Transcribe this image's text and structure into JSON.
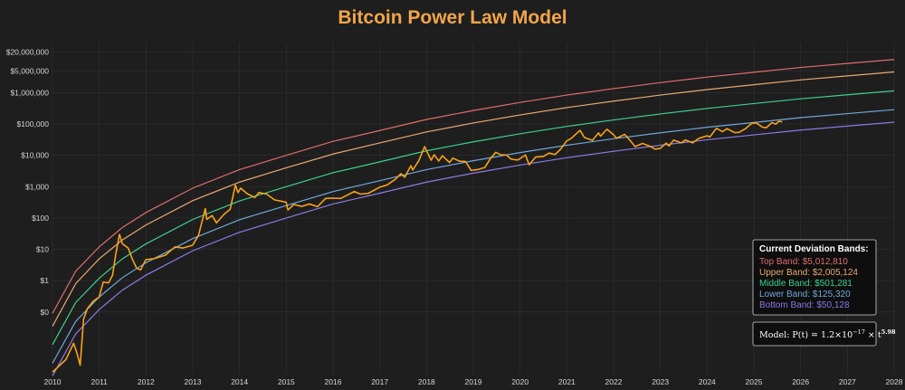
{
  "chart_data": {
    "type": "line",
    "title": "Bitcoin Power Law Model",
    "title_color": "#f2a54a",
    "xlabel": "",
    "ylabel": "",
    "y_scale": "log",
    "x_range": [
      "2010-01-01",
      "2028-01-01"
    ],
    "y_range": [
      0.001,
      40000000
    ],
    "grid": true,
    "x_ticks": [
      "2010",
      "2011",
      "2012",
      "2013",
      "2014",
      "2015",
      "2016",
      "2017",
      "2018",
      "2019",
      "2020",
      "2021",
      "2022",
      "2023",
      "2024",
      "2025",
      "2026",
      "2027",
      "2028"
    ],
    "y_ticks": [
      {
        "value": 20000000,
        "label": "$20,000,000"
      },
      {
        "value": 5000000,
        "label": "$5,000,000"
      },
      {
        "value": 1000000,
        "label": "$1,000,000"
      },
      {
        "value": 100000,
        "label": "$100,000"
      },
      {
        "value": 10000,
        "label": "$10,000"
      },
      {
        "value": 1000,
        "label": "$1,000"
      },
      {
        "value": 100,
        "label": "$100"
      },
      {
        "value": 10,
        "label": "$10"
      },
      {
        "value": 1,
        "label": "$1"
      },
      {
        "value": 0.1,
        "label": "$0"
      }
    ],
    "bands": [
      {
        "name": "Top Band",
        "color": "#e06c6c",
        "points": [
          [
            "2010-01-01",
            0.09
          ],
          [
            "2010-07-01",
            2
          ],
          [
            "2011-01-01",
            12
          ],
          [
            "2011-07-01",
            50
          ],
          [
            "2012-01-01",
            150
          ],
          [
            "2013-01-01",
            900
          ],
          [
            "2014-01-01",
            3500
          ],
          [
            "2015-01-01",
            10000
          ],
          [
            "2016-01-01",
            28000
          ],
          [
            "2017-01-01",
            62000
          ],
          [
            "2018-01-01",
            140000
          ],
          [
            "2019-01-01",
            270000
          ],
          [
            "2020-01-01",
            490000
          ],
          [
            "2021-01-01",
            840000
          ],
          [
            "2022-01-01",
            1350000
          ],
          [
            "2023-01-01",
            2100000
          ],
          [
            "2024-01-01",
            3150000
          ],
          [
            "2025-01-01",
            4500000
          ],
          [
            "2026-01-01",
            6400000
          ],
          [
            "2027-01-01",
            8600000
          ],
          [
            "2028-01-01",
            11500000
          ]
        ]
      },
      {
        "name": "Upper Band",
        "color": "#e8a870",
        "points": [
          [
            "2010-01-01",
            0.035
          ],
          [
            "2010-07-01",
            0.8
          ],
          [
            "2011-01-01",
            5
          ],
          [
            "2011-07-01",
            20
          ],
          [
            "2012-01-01",
            60
          ],
          [
            "2013-01-01",
            360
          ],
          [
            "2014-01-01",
            1400
          ],
          [
            "2015-01-01",
            4000
          ],
          [
            "2016-01-01",
            11000
          ],
          [
            "2017-01-01",
            25000
          ],
          [
            "2018-01-01",
            56000
          ],
          [
            "2019-01-01",
            108000
          ],
          [
            "2020-01-01",
            195000
          ],
          [
            "2021-01-01",
            335000
          ],
          [
            "2022-01-01",
            540000
          ],
          [
            "2023-01-01",
            840000
          ],
          [
            "2024-01-01",
            1260000
          ],
          [
            "2025-01-01",
            1800000
          ],
          [
            "2026-01-01",
            2560000
          ],
          [
            "2027-01-01",
            3450000
          ],
          [
            "2028-01-01",
            4600000
          ]
        ]
      },
      {
        "name": "Middle Band",
        "color": "#3fcf8e",
        "points": [
          [
            "2010-01-01",
            0.009
          ],
          [
            "2010-07-01",
            0.2
          ],
          [
            "2011-01-01",
            1.2
          ],
          [
            "2011-07-01",
            5
          ],
          [
            "2012-01-01",
            15
          ],
          [
            "2013-01-01",
            90
          ],
          [
            "2014-01-01",
            350
          ],
          [
            "2015-01-01",
            1000
          ],
          [
            "2016-01-01",
            2800
          ],
          [
            "2017-01-01",
            6200
          ],
          [
            "2018-01-01",
            14000
          ],
          [
            "2019-01-01",
            27000
          ],
          [
            "2020-01-01",
            49000
          ],
          [
            "2021-01-01",
            84000
          ],
          [
            "2022-01-01",
            135000
          ],
          [
            "2023-01-01",
            210000
          ],
          [
            "2024-01-01",
            315000
          ],
          [
            "2025-01-01",
            450000
          ],
          [
            "2026-01-01",
            640000
          ],
          [
            "2027-01-01",
            860000
          ],
          [
            "2028-01-01",
            1150000
          ]
        ]
      },
      {
        "name": "Lower Band",
        "color": "#6fa8dc",
        "points": [
          [
            "2010-01-01",
            0.0023
          ],
          [
            "2010-07-01",
            0.05
          ],
          [
            "2011-01-01",
            0.3
          ],
          [
            "2011-07-01",
            1.25
          ],
          [
            "2012-01-01",
            3.75
          ],
          [
            "2013-01-01",
            22
          ],
          [
            "2014-01-01",
            88
          ],
          [
            "2015-01-01",
            250
          ],
          [
            "2016-01-01",
            700
          ],
          [
            "2017-01-01",
            1550
          ],
          [
            "2018-01-01",
            3500
          ],
          [
            "2019-01-01",
            6750
          ],
          [
            "2020-01-01",
            12250
          ],
          [
            "2021-01-01",
            21000
          ],
          [
            "2022-01-01",
            34000
          ],
          [
            "2023-01-01",
            52500
          ],
          [
            "2024-01-01",
            79000
          ],
          [
            "2025-01-01",
            112000
          ],
          [
            "2026-01-01",
            160000
          ],
          [
            "2027-01-01",
            215000
          ],
          [
            "2028-01-01",
            288000
          ]
        ]
      },
      {
        "name": "Bottom Band",
        "color": "#8c7ae6",
        "points": [
          [
            "2010-01-01",
            0.0009
          ],
          [
            "2010-07-01",
            0.02
          ],
          [
            "2011-01-01",
            0.12
          ],
          [
            "2011-07-01",
            0.5
          ],
          [
            "2012-01-01",
            1.5
          ],
          [
            "2013-01-01",
            9
          ],
          [
            "2014-01-01",
            35
          ],
          [
            "2015-01-01",
            100
          ],
          [
            "2016-01-01",
            280
          ],
          [
            "2017-01-01",
            620
          ],
          [
            "2018-01-01",
            1400
          ],
          [
            "2019-01-01",
            2700
          ],
          [
            "2020-01-01",
            4900
          ],
          [
            "2021-01-01",
            8400
          ],
          [
            "2022-01-01",
            13500
          ],
          [
            "2023-01-01",
            21000
          ],
          [
            "2024-01-01",
            31500
          ],
          [
            "2025-01-01",
            45000
          ],
          [
            "2026-01-01",
            64000
          ],
          [
            "2027-01-01",
            86000
          ],
          [
            "2028-01-01",
            115000
          ]
        ]
      }
    ],
    "series": [
      {
        "color": "#f7a21b",
        "points": [
          [
            "2010-01-01",
            0.0012
          ],
          [
            "2010-04-15",
            0.003
          ],
          [
            "2010-06-15",
            0.01
          ],
          [
            "2010-07-10",
            0.005
          ],
          [
            "2010-08-05",
            0.002
          ],
          [
            "2010-09-01",
            0.06
          ],
          [
            "2010-10-01",
            0.13
          ],
          [
            "2010-11-15",
            0.22
          ],
          [
            "2010-12-31",
            0.3
          ],
          [
            "2011-02-01",
            0.9
          ],
          [
            "2011-03-15",
            0.85
          ],
          [
            "2011-04-15",
            1.5
          ],
          [
            "2011-05-10",
            7
          ],
          [
            "2011-06-08",
            30
          ],
          [
            "2011-07-01",
            15
          ],
          [
            "2011-08-15",
            11
          ],
          [
            "2011-09-15",
            5
          ],
          [
            "2011-10-20",
            2.5
          ],
          [
            "2011-11-20",
            2.2
          ],
          [
            "2011-12-31",
            4.7
          ],
          [
            "2012-03-01",
            5
          ],
          [
            "2012-06-01",
            6.5
          ],
          [
            "2012-08-15",
            12
          ],
          [
            "2012-10-15",
            11
          ],
          [
            "2012-12-31",
            13.5
          ],
          [
            "2013-02-15",
            28
          ],
          [
            "2013-04-09",
            200
          ],
          [
            "2013-04-20",
            90
          ],
          [
            "2013-06-01",
            120
          ],
          [
            "2013-07-05",
            70
          ],
          [
            "2013-09-01",
            130
          ],
          [
            "2013-10-20",
            190
          ],
          [
            "2013-11-30",
            1130
          ],
          [
            "2013-12-20",
            650
          ],
          [
            "2014-01-10",
            900
          ],
          [
            "2014-03-01",
            600
          ],
          [
            "2014-05-01",
            450
          ],
          [
            "2014-06-01",
            650
          ],
          [
            "2014-08-01",
            580
          ],
          [
            "2014-10-01",
            380
          ],
          [
            "2014-12-31",
            320
          ],
          [
            "2015-01-14",
            180
          ],
          [
            "2015-03-01",
            270
          ],
          [
            "2015-05-01",
            235
          ],
          [
            "2015-07-01",
            280
          ],
          [
            "2015-09-01",
            230
          ],
          [
            "2015-11-04",
            420
          ],
          [
            "2015-12-31",
            430
          ],
          [
            "2016-03-01",
            420
          ],
          [
            "2016-06-15",
            700
          ],
          [
            "2016-08-01",
            580
          ],
          [
            "2016-10-01",
            610
          ],
          [
            "2016-12-31",
            960
          ],
          [
            "2017-03-01",
            1150
          ],
          [
            "2017-05-01",
            1700
          ],
          [
            "2017-06-15",
            2600
          ],
          [
            "2017-07-15",
            2000
          ],
          [
            "2017-09-01",
            4700
          ],
          [
            "2017-09-15",
            3400
          ],
          [
            "2017-11-01",
            6700
          ],
          [
            "2017-12-17",
            19000
          ],
          [
            "2018-02-06",
            7000
          ],
          [
            "2018-03-01",
            10500
          ],
          [
            "2018-04-06",
            6600
          ],
          [
            "2018-05-05",
            9700
          ],
          [
            "2018-06-29",
            5900
          ],
          [
            "2018-07-25",
            8200
          ],
          [
            "2018-09-15",
            6500
          ],
          [
            "2018-11-01",
            6400
          ],
          [
            "2018-12-15",
            3300
          ],
          [
            "2019-02-01",
            3500
          ],
          [
            "2019-04-01",
            4100
          ],
          [
            "2019-05-15",
            8000
          ],
          [
            "2019-06-26",
            12500
          ],
          [
            "2019-08-01",
            10500
          ],
          [
            "2019-09-15",
            10300
          ],
          [
            "2019-10-25",
            7500
          ],
          [
            "2019-12-15",
            7100
          ],
          [
            "2020-02-12",
            10300
          ],
          [
            "2020-03-12",
            5000
          ],
          [
            "2020-05-01",
            8800
          ],
          [
            "2020-07-01",
            9200
          ],
          [
            "2020-08-15",
            11800
          ],
          [
            "2020-10-01",
            10600
          ],
          [
            "2020-11-15",
            16000
          ],
          [
            "2020-12-31",
            29000
          ],
          [
            "2021-02-01",
            34000
          ],
          [
            "2021-04-14",
            63000
          ],
          [
            "2021-05-19",
            37000
          ],
          [
            "2021-07-20",
            30000
          ],
          [
            "2021-09-05",
            52000
          ],
          [
            "2021-09-21",
            41000
          ],
          [
            "2021-11-10",
            68000
          ],
          [
            "2021-12-31",
            46000
          ],
          [
            "2022-01-24",
            35000
          ],
          [
            "2022-03-28",
            47000
          ],
          [
            "2022-05-10",
            30000
          ],
          [
            "2022-06-18",
            19000
          ],
          [
            "2022-08-15",
            24000
          ],
          [
            "2022-10-15",
            19200
          ],
          [
            "2022-11-21",
            15800
          ],
          [
            "2022-12-31",
            16600
          ],
          [
            "2023-02-15",
            24500
          ],
          [
            "2023-03-10",
            20000
          ],
          [
            "2023-04-15",
            30500
          ],
          [
            "2023-06-15",
            25000
          ],
          [
            "2023-07-15",
            31000
          ],
          [
            "2023-09-11",
            25000
          ],
          [
            "2023-10-25",
            34500
          ],
          [
            "2023-12-31",
            42000
          ],
          [
            "2024-01-23",
            39000
          ],
          [
            "2024-03-14",
            73000
          ],
          [
            "2024-05-01",
            57000
          ],
          [
            "2024-06-05",
            71000
          ],
          [
            "2024-08-05",
            53000
          ],
          [
            "2024-09-06",
            54000
          ],
          [
            "2024-10-29",
            72000
          ],
          [
            "2024-12-17",
            106000
          ],
          [
            "2025-01-20",
            108000
          ],
          [
            "2025-03-10",
            79000
          ],
          [
            "2025-04-08",
            76000
          ],
          [
            "2025-05-22",
            111000
          ],
          [
            "2025-06-22",
            99000
          ],
          [
            "2025-07-14",
            122000
          ],
          [
            "2025-08-10",
            118000
          ]
        ]
      }
    ],
    "info_box": {
      "title": "Current Deviation Bands:",
      "lines": [
        {
          "label": "Top Band: $5,012,810",
          "color": "#e06c6c"
        },
        {
          "label": "Upper Band: $2,005,124",
          "color": "#e8a870"
        },
        {
          "label": "Middle Band: $501,281",
          "color": "#3fcf8e"
        },
        {
          "label": "Lower Band: $125,320",
          "color": "#6fa8dc"
        },
        {
          "label": "Bottom Band: $50,128",
          "color": "#8c7ae6"
        }
      ]
    },
    "model_formula": {
      "prefix": "Model: P(t) = 1.2×10",
      "exp1": "−17",
      "middle": " × t",
      "exp2": "5.98"
    }
  }
}
